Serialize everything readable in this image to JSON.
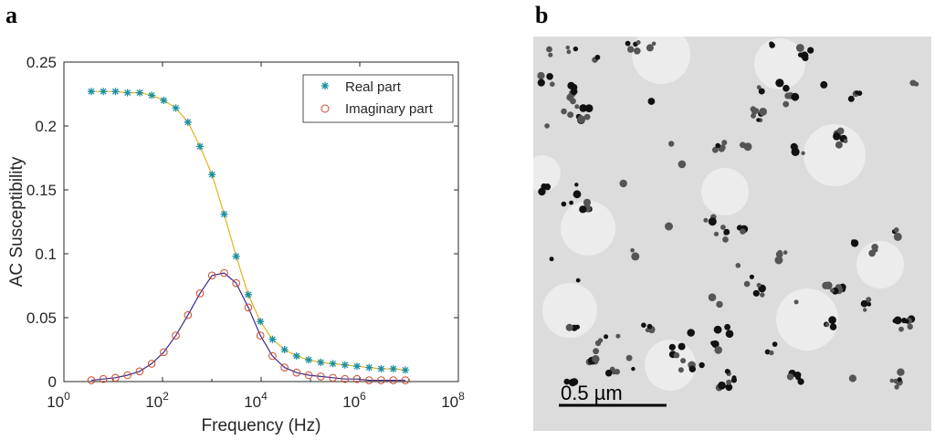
{
  "panels": {
    "a": "a",
    "b": "b"
  },
  "chart_data": [
    {
      "type": "scatter",
      "xscale": "log",
      "xlabel": "Frequency (Hz)",
      "ylabel": "AC Susceptibility",
      "xlim": [
        1,
        100000000
      ],
      "ylim": [
        0,
        0.25
      ],
      "xticks": [
        {
          "value": 1,
          "base": "10",
          "exp": "0"
        },
        {
          "value": 100,
          "base": "10",
          "exp": "2"
        },
        {
          "value": 10000,
          "base": "10",
          "exp": "4"
        },
        {
          "value": 1000000,
          "base": "10",
          "exp": "6"
        },
        {
          "value": 100000000,
          "base": "10",
          "exp": "8"
        }
      ],
      "yticks": [
        {
          "value": 0,
          "label": "0"
        },
        {
          "value": 0.05,
          "label": "0.05"
        },
        {
          "value": 0.1,
          "label": "0.1"
        },
        {
          "value": 0.15,
          "label": "0.15"
        },
        {
          "value": 0.2,
          "label": "0.2"
        },
        {
          "value": 0.25,
          "label": "0.25"
        }
      ],
      "legend_position": "top-right",
      "series": [
        {
          "name": "Real part",
          "marker": "asterisk",
          "color": "#1a8fa0",
          "fit_color": "#e8b020",
          "x": [
            3.6,
            6.3,
            11.1,
            19.5,
            34.3,
            60.2,
            106,
            186,
            327,
            575,
            1010,
            1780,
            3120,
            5490,
            9650,
            17000,
            29800,
            52400,
            92100,
            162000,
            285000,
            501000,
            880000,
            1550000,
            2720000,
            4780000,
            8400000
          ],
          "y": [
            0.227,
            0.227,
            0.227,
            0.226,
            0.226,
            0.224,
            0.22,
            0.214,
            0.203,
            0.184,
            0.162,
            0.131,
            0.098,
            0.068,
            0.047,
            0.033,
            0.025,
            0.02,
            0.017,
            0.015,
            0.014,
            0.013,
            0.012,
            0.011,
            0.01,
            0.01,
            0.009
          ]
        },
        {
          "name": "Imaginary part",
          "marker": "circle",
          "color": "#c8492a",
          "fit_color": "#3d2a8c",
          "x": [
            3.6,
            6.3,
            11.1,
            19.5,
            34.3,
            60.2,
            106,
            186,
            327,
            575,
            1010,
            1780,
            3120,
            5490,
            9650,
            17000,
            29800,
            52400,
            92100,
            162000,
            285000,
            501000,
            880000,
            1550000,
            2720000,
            4780000,
            8400000
          ],
          "y": [
            0.001,
            0.002,
            0.003,
            0.005,
            0.008,
            0.014,
            0.023,
            0.036,
            0.052,
            0.069,
            0.083,
            0.085,
            0.077,
            0.058,
            0.036,
            0.02,
            0.011,
            0.007,
            0.005,
            0.004,
            0.003,
            0.002,
            0.002,
            0.001,
            0.001,
            0.001,
            0.001
          ]
        }
      ]
    }
  ],
  "micrograph": {
    "scale_bar_label": "0.5 µm",
    "background_color": "#dcdcdc"
  }
}
